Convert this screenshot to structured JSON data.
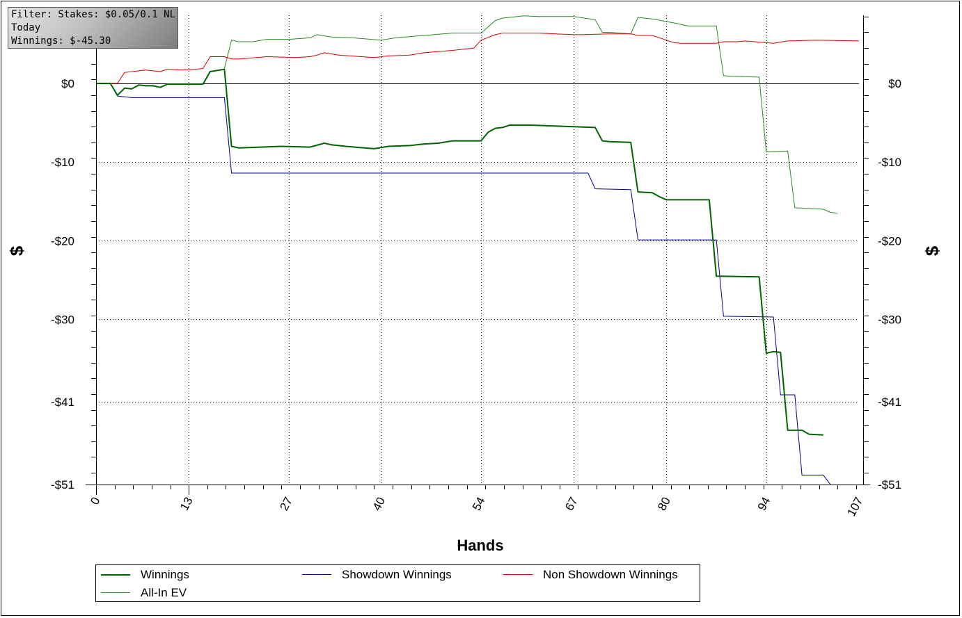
{
  "info": {
    "filter": "Filter: Stakes: $0.05/0.1 NL",
    "period": "Today",
    "winnings": "Winnings: $-45.30"
  },
  "chart_data": {
    "type": "line",
    "title": "",
    "xlabel": "Hands",
    "ylabel": "$",
    "xlim": [
      0,
      107
    ],
    "ylim": [
      -51,
      8.5
    ],
    "x_ticks": [
      0,
      13,
      27,
      40,
      54,
      67,
      80,
      94,
      107
    ],
    "x_tick_labels": [
      "0",
      "13",
      "27",
      "40",
      "54",
      "67",
      "80",
      "94",
      "107"
    ],
    "y_ticks": [
      0,
      -10,
      -20,
      -30,
      -40.5,
      -51
    ],
    "y_tick_labels": [
      "$0",
      "-$10",
      "-$20",
      "-$30",
      "-$41",
      "-$51"
    ],
    "grid": true,
    "legend_position": "bottom",
    "series": [
      {
        "name": "Winnings",
        "color": "#006400",
        "width": 2,
        "points": [
          [
            0,
            0
          ],
          [
            2,
            0
          ],
          [
            3,
            -1.5
          ],
          [
            4,
            -0.6
          ],
          [
            5,
            -0.7
          ],
          [
            6,
            -0.2
          ],
          [
            7,
            -0.3
          ],
          [
            8,
            -0.3
          ],
          [
            9,
            -0.5
          ],
          [
            10,
            -0.1
          ],
          [
            11,
            -0.1
          ],
          [
            15,
            -0.1
          ],
          [
            16,
            1.5
          ],
          [
            18,
            1.8
          ],
          [
            19,
            -8
          ],
          [
            20,
            -8.2
          ],
          [
            26,
            -8
          ],
          [
            30,
            -8.1
          ],
          [
            32,
            -7.6
          ],
          [
            33,
            -7.8
          ],
          [
            35,
            -8
          ],
          [
            39,
            -8.3
          ],
          [
            41,
            -8
          ],
          [
            44,
            -7.9
          ],
          [
            46,
            -7.7
          ],
          [
            48,
            -7.6
          ],
          [
            50,
            -7.3
          ],
          [
            54,
            -7.3
          ],
          [
            55,
            -6.2
          ],
          [
            56,
            -5.7
          ],
          [
            57,
            -5.6
          ],
          [
            58,
            -5.3
          ],
          [
            61,
            -5.3
          ],
          [
            67,
            -5.5
          ],
          [
            70,
            -5.6
          ],
          [
            71,
            -7.3
          ],
          [
            72,
            -7.4
          ],
          [
            75,
            -7.5
          ],
          [
            76,
            -13.8
          ],
          [
            78,
            -13.9
          ],
          [
            79,
            -14.4
          ],
          [
            80,
            -14.8
          ],
          [
            86,
            -14.8
          ],
          [
            87,
            -24.5
          ],
          [
            93,
            -24.6
          ],
          [
            94,
            -34.3
          ],
          [
            95,
            -34.1
          ],
          [
            96,
            -34.2
          ],
          [
            97,
            -44.1
          ],
          [
            99,
            -44.1
          ],
          [
            100,
            -44.6
          ],
          [
            102,
            -44.7
          ]
        ]
      },
      {
        "name": "Showdown Winnings",
        "color": "#00008b",
        "width": 1,
        "points": [
          [
            0,
            0
          ],
          [
            2,
            0
          ],
          [
            3,
            -1.6
          ],
          [
            5,
            -1.8
          ],
          [
            18,
            -1.8
          ],
          [
            19,
            -11.4
          ],
          [
            69,
            -11.4
          ],
          [
            70,
            -13.4
          ],
          [
            75,
            -13.5
          ],
          [
            76,
            -19.9
          ],
          [
            87,
            -19.9
          ],
          [
            88,
            -29.6
          ],
          [
            95,
            -29.7
          ],
          [
            96,
            -39.6
          ],
          [
            98,
            -39.6
          ],
          [
            99,
            -49.8
          ],
          [
            102,
            -49.8
          ],
          [
            103,
            -51
          ]
        ]
      },
      {
        "name": "Non Showdown Winnings",
        "color": "#e00000",
        "width": 1,
        "points": [
          [
            0,
            0
          ],
          [
            3,
            0
          ],
          [
            4,
            1.4
          ],
          [
            6,
            1.6
          ],
          [
            7,
            1.7
          ],
          [
            9,
            1.5
          ],
          [
            10,
            1.8
          ],
          [
            12,
            1.7
          ],
          [
            14,
            1.8
          ],
          [
            15,
            1.9
          ],
          [
            16,
            3.4
          ],
          [
            18,
            3.4
          ],
          [
            19,
            3.1
          ],
          [
            20,
            3.1
          ],
          [
            24,
            3.4
          ],
          [
            28,
            3.3
          ],
          [
            30,
            3.4
          ],
          [
            31,
            3.6
          ],
          [
            32,
            3.9
          ],
          [
            34,
            3.6
          ],
          [
            39,
            3.3
          ],
          [
            41,
            3.5
          ],
          [
            44,
            3.6
          ],
          [
            46,
            3.9
          ],
          [
            50,
            4.2
          ],
          [
            53,
            4.5
          ],
          [
            54,
            5.5
          ],
          [
            56,
            6.2
          ],
          [
            57,
            6.4
          ],
          [
            62,
            6.4
          ],
          [
            67,
            6.2
          ],
          [
            68,
            6.2
          ],
          [
            72,
            6.3
          ],
          [
            75,
            6.3
          ],
          [
            76,
            6.1
          ],
          [
            78,
            6.1
          ],
          [
            81,
            5.2
          ],
          [
            82,
            5.1
          ],
          [
            87,
            5.1
          ],
          [
            88,
            5.3
          ],
          [
            90,
            5.3
          ],
          [
            91,
            5.4
          ],
          [
            95,
            5.1
          ],
          [
            97,
            5.4
          ],
          [
            101,
            5.5
          ],
          [
            107,
            5.4
          ]
        ]
      },
      {
        "name": "All-In EV",
        "color": "#228b22",
        "width": 1,
        "points": [
          [
            18,
            1.9
          ],
          [
            19,
            5.5
          ],
          [
            20,
            5.3
          ],
          [
            22,
            5.3
          ],
          [
            24,
            5.6
          ],
          [
            27,
            5.6
          ],
          [
            30,
            5.8
          ],
          [
            31,
            6.2
          ],
          [
            33,
            5.9
          ],
          [
            36,
            5.8
          ],
          [
            40,
            5.5
          ],
          [
            42,
            5.8
          ],
          [
            46,
            6.1
          ],
          [
            50,
            6.4
          ],
          [
            54,
            6.4
          ],
          [
            56,
            8
          ],
          [
            57,
            8.3
          ],
          [
            58,
            8.4
          ],
          [
            60,
            8.6
          ],
          [
            62,
            8.5
          ],
          [
            67,
            8.5
          ],
          [
            70,
            8.1
          ],
          [
            71,
            6.5
          ],
          [
            72,
            6.5
          ],
          [
            75,
            6.3
          ],
          [
            76,
            8.4
          ],
          [
            78,
            8.2
          ],
          [
            81,
            7.7
          ],
          [
            83,
            7.3
          ],
          [
            87,
            7.3
          ],
          [
            88,
            1.0
          ],
          [
            89,
            0.9
          ],
          [
            93,
            0.8
          ],
          [
            94,
            -8.7
          ],
          [
            97,
            -8.6
          ],
          [
            98,
            -15.8
          ],
          [
            102,
            -16
          ],
          [
            103,
            -16.4
          ],
          [
            104,
            -16.5
          ]
        ]
      }
    ]
  },
  "legend": {
    "items": [
      {
        "label": "Winnings",
        "color": "#006400",
        "width": 2
      },
      {
        "label": "Showdown Winnings",
        "color": "#00008b",
        "width": 1
      },
      {
        "label": "Non Showdown Winnings",
        "color": "#e00000",
        "width": 1
      },
      {
        "label": "All-In EV",
        "color": "#228b22",
        "width": 1
      }
    ]
  }
}
